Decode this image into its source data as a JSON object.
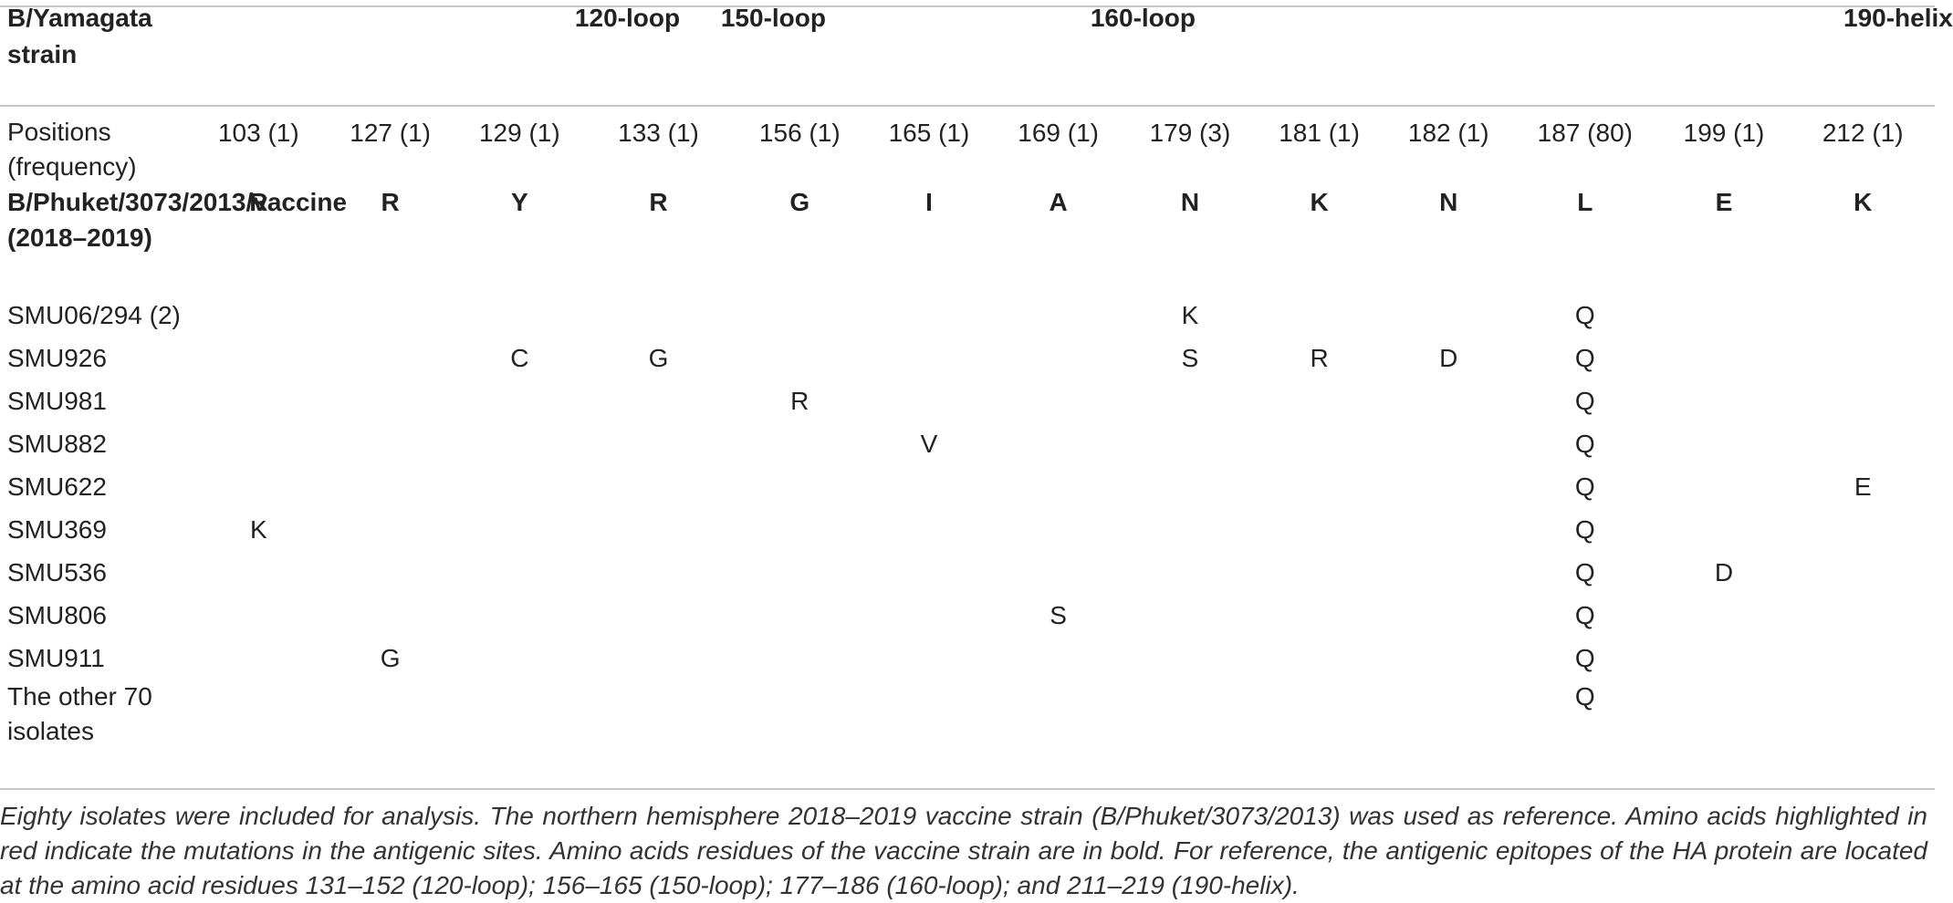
{
  "table": {
    "header": {
      "strain_label": "B/Yamagata strain",
      "loop_120": "120-loop",
      "loop_150": "150-loop",
      "loop_160": "160-loop",
      "helix_190": "190-helix"
    },
    "positions_label": "Positions (frequency)",
    "positions": [
      "103 (1)",
      "127 (1)",
      "129 (1)",
      "133 (1)",
      "156 (1)",
      "165 (1)",
      "169 (1)",
      "179 (3)",
      "181 (1)",
      "182 (1)",
      "187 (80)",
      "199 (1)",
      "212 (1)"
    ],
    "reference": {
      "name": "B/Phuket/3073/2013/vaccine (2018–2019)",
      "residues": [
        "R",
        "R",
        "Y",
        "R",
        "G",
        "I",
        "A",
        "N",
        "K",
        "N",
        "L",
        "E",
        "K"
      ]
    },
    "rows": [
      {
        "name": "SMU06/294 (2)",
        "cells": [
          "",
          "",
          "",
          "",
          "",
          "",
          "",
          "K",
          "",
          "",
          "Q",
          "",
          ""
        ]
      },
      {
        "name": "SMU926",
        "cells": [
          "",
          "",
          "C",
          "G",
          "",
          "",
          "",
          "S",
          "R",
          "D",
          "Q",
          "",
          ""
        ]
      },
      {
        "name": "SMU981",
        "cells": [
          "",
          "",
          "",
          "",
          "R",
          "",
          "",
          "",
          "",
          "",
          "Q",
          "",
          ""
        ]
      },
      {
        "name": "SMU882",
        "cells": [
          "",
          "",
          "",
          "",
          "",
          "V",
          "",
          "",
          "",
          "",
          "Q",
          "",
          ""
        ]
      },
      {
        "name": "SMU622",
        "cells": [
          "",
          "",
          "",
          "",
          "",
          "",
          "",
          "",
          "",
          "",
          "Q",
          "",
          "E"
        ]
      },
      {
        "name": "SMU369",
        "cells": [
          "K",
          "",
          "",
          "",
          "",
          "",
          "",
          "",
          "",
          "",
          "Q",
          "",
          ""
        ]
      },
      {
        "name": "SMU536",
        "cells": [
          "",
          "",
          "",
          "",
          "",
          "",
          "",
          "",
          "",
          "",
          "Q",
          "D",
          ""
        ]
      },
      {
        "name": "SMU806",
        "cells": [
          "",
          "",
          "",
          "",
          "",
          "",
          "S",
          "",
          "",
          "",
          "Q",
          "",
          ""
        ]
      },
      {
        "name": "SMU911",
        "cells": [
          "",
          "G",
          "",
          "",
          "",
          "",
          "",
          "",
          "",
          "",
          "Q",
          "",
          ""
        ]
      },
      {
        "name": "The other 70 isolates",
        "cells": [
          "",
          "",
          "",
          "",
          "",
          "",
          "",
          "",
          "",
          "",
          "Q",
          "",
          ""
        ]
      }
    ]
  },
  "caption": "Eighty isolates were included for analysis. The northern hemisphere 2018–2019 vaccine strain (B/Phuket/3073/2013) was used as reference. Amino acids highlighted in red indicate the mutations in the antigenic sites. Amino acids residues of the vaccine strain are in bold. For reference, the antigenic epitopes of the HA protein are located at the amino acid residues 131–152 (120-loop); 156–165 (150-loop); 177–186 (160-loop); and 211–219 (190-helix)."
}
